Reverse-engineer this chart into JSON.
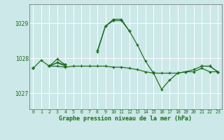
{
  "title": "Graphe pression niveau de la mer (hPa)",
  "background_color": "#cce8e8",
  "grid_color": "#ffffff",
  "line_color": "#1a6b1a",
  "x_ticks": [
    0,
    1,
    2,
    3,
    4,
    5,
    6,
    7,
    8,
    9,
    10,
    11,
    12,
    13,
    14,
    15,
    16,
    17,
    18,
    19,
    20,
    21,
    22,
    23
  ],
  "y_ticks": [
    1027,
    1028,
    1029
  ],
  "ylim": [
    1026.55,
    1029.55
  ],
  "xlim": [
    -0.5,
    23.5
  ],
  "series": [
    [
      1027.72,
      1027.95,
      1027.78,
      1027.78,
      1027.75,
      1027.78,
      1027.78,
      1027.78,
      1027.78,
      1027.78,
      1027.75,
      1027.75,
      1027.72,
      1027.68,
      1027.62,
      1027.58,
      1027.58,
      1027.58,
      1027.58,
      1027.62,
      1027.62,
      1027.72,
      1027.62,
      1027.62
    ],
    [
      1027.72,
      null,
      1027.78,
      1027.88,
      1027.82,
      null,
      null,
      null,
      1028.18,
      1028.92,
      1029.08,
      1029.08,
      1028.78,
      1028.38,
      1027.92,
      1027.58,
      1027.12,
      1027.38,
      1027.58,
      1027.62,
      1027.68,
      1027.78,
      1027.78,
      1027.62
    ],
    [
      1027.72,
      null,
      1027.78,
      1027.98,
      1027.82,
      null,
      null,
      null,
      1028.22,
      1028.92,
      1029.12,
      1029.12,
      1028.78,
      null,
      null,
      1027.62,
      null,
      null,
      null,
      null,
      null,
      1027.78,
      1027.78,
      1027.62
    ],
    [
      1027.72,
      null,
      1027.78,
      1027.88,
      1027.78,
      null,
      null,
      null,
      null,
      null,
      1029.08,
      null,
      null,
      null,
      null,
      1027.58,
      null,
      null,
      null,
      null,
      null,
      null,
      null,
      null
    ]
  ]
}
